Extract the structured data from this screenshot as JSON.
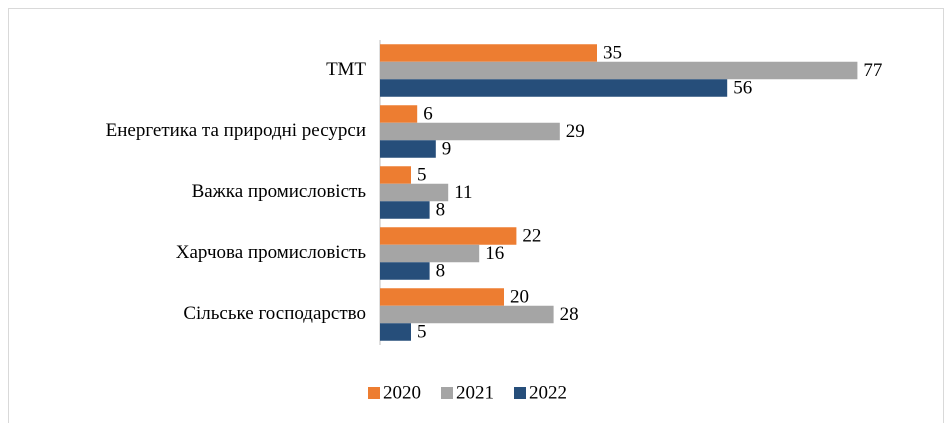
{
  "chart_data": {
    "type": "hbar",
    "categories": [
      "ТМТ",
      "Енергетика та природні ресурси",
      "Важка промисловість",
      "Харчова промисловість",
      "Сільське господарство"
    ],
    "series": [
      {
        "name": "2020",
        "color": "#ed7d31",
        "values": [
          35,
          6,
          5,
          22,
          20
        ]
      },
      {
        "name": "2021",
        "color": "#a5a5a5",
        "values": [
          77,
          29,
          11,
          16,
          28
        ]
      },
      {
        "name": "2022",
        "color": "#264e7a",
        "values": [
          56,
          9,
          8,
          8,
          5
        ]
      }
    ],
    "xlim": [
      0,
      80
    ],
    "legend": "bottom"
  }
}
